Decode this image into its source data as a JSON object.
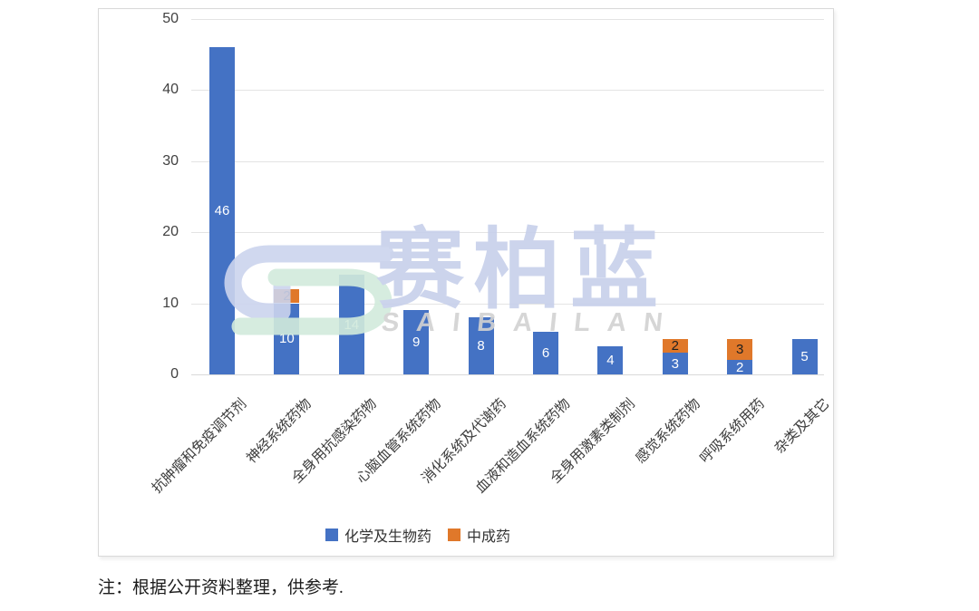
{
  "chart_data": {
    "type": "bar",
    "stacked": true,
    "categories": [
      "抗肿瘤和免疫调节剂",
      "神经系统药物",
      "全身用抗感染药物",
      "心脑血管系统药物",
      "消化系统及代谢药",
      "血液和造血系统药物",
      "全身用激素类制剂",
      "感觉系统药物",
      "呼吸系统用药",
      "杂类及其它"
    ],
    "series": [
      {
        "name": "化学及生物药",
        "color": "#4472c4",
        "label_color": "#ffffff",
        "values": [
          46,
          10,
          14,
          9,
          8,
          6,
          4,
          3,
          2,
          5
        ]
      },
      {
        "name": "中成药",
        "color": "#e0782a",
        "label_color": "#1f1f1f",
        "values": [
          0,
          2,
          0,
          0,
          0,
          0,
          0,
          2,
          3,
          0
        ]
      }
    ],
    "title": "",
    "xlabel": "",
    "ylabel": "",
    "ylim": [
      0,
      50
    ],
    "yticks": [
      0,
      10,
      20,
      30,
      40,
      50
    ],
    "grid": "horizontal",
    "legend_position": "bottom"
  },
  "watermark": {
    "text_cn": "赛柏蓝",
    "text_en": "SAIBAILAN",
    "logo": "saibailan-logo",
    "color_blue": "#ccd4ee",
    "color_green": "#d2ebdc"
  },
  "note": "注：根据公开资料整理，供参考."
}
